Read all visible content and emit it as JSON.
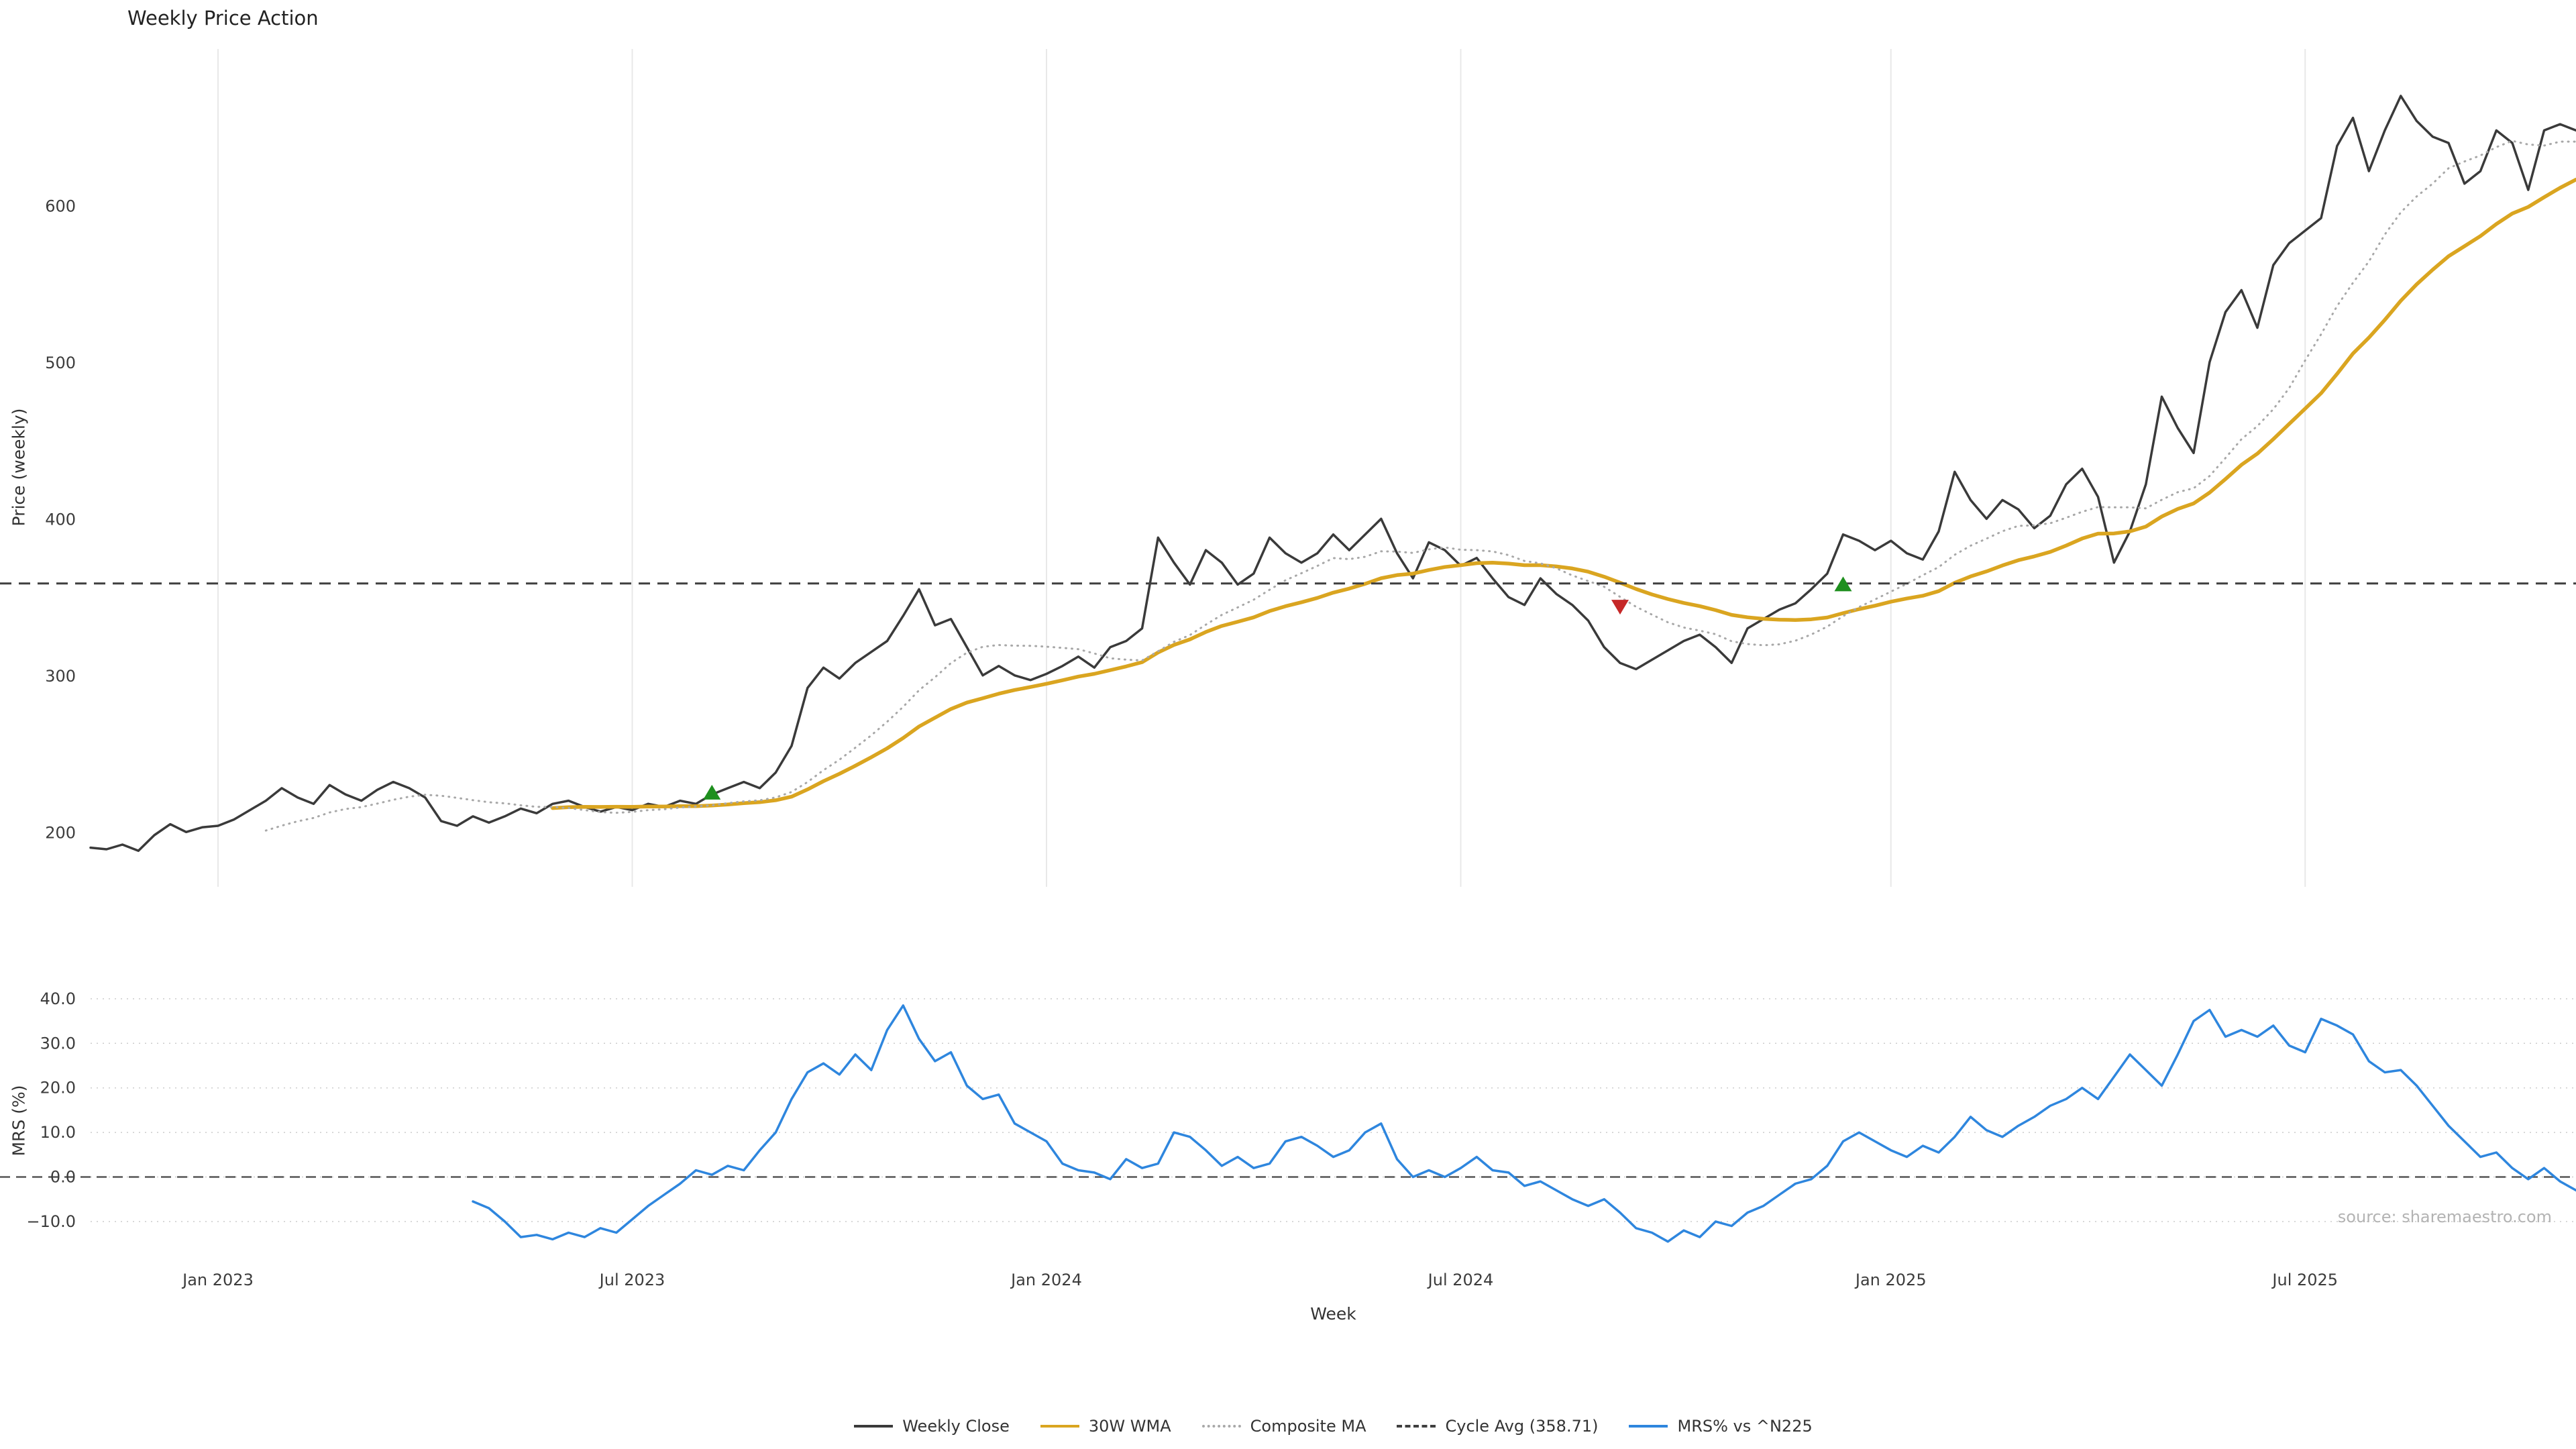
{
  "header": {
    "title": "Weekly Price Action"
  },
  "axes": {
    "x_label": "Week",
    "price_y_label": "Price (weekly)",
    "mrs_y_label": "MRS (%)"
  },
  "source_note": "source: sharemaestro.com",
  "legend": {
    "items": [
      {
        "label": "Weekly Close",
        "style": "solid",
        "color": "#3a3a3a"
      },
      {
        "label": "30W WMA",
        "style": "solid",
        "color": "#DAA520"
      },
      {
        "label": "Composite MA",
        "style": "dotted",
        "color": "#a8a8a8"
      },
      {
        "label": "Cycle Avg (358.71)",
        "style": "dashed",
        "color": "#3f3f3f"
      },
      {
        "label": "MRS% vs ^N225",
        "style": "solid",
        "color": "#2e86de"
      }
    ]
  },
  "chart_data": {
    "type": "line",
    "title": "Weekly Price Action",
    "xlabel": "Week",
    "grid": "vertical-light-top-panel, dotted-horizontal-bottom-panel",
    "legend_position": "bottom-center",
    "x_axis": {
      "start_week": 0,
      "end_week": 156,
      "tick_weeks": [
        8,
        34,
        60,
        86,
        113,
        139
      ],
      "tick_labels": [
        "Jan 2023",
        "Jul 2023",
        "Jan 2024",
        "Jul 2024",
        "Jan 2025",
        "Jul 2025"
      ]
    },
    "price_panel": {
      "ylabel": "Price (weekly)",
      "ylim": [
        165,
        700
      ],
      "yticks": [
        200,
        300,
        400,
        500,
        600
      ],
      "cycle_avg": 358.71,
      "series": [
        {
          "name": "Weekly Close",
          "type": "raw",
          "color": "#3a3a3a",
          "dash": "solid",
          "values": [
            190,
            189,
            192,
            188,
            198,
            205,
            200,
            203,
            204,
            208,
            214,
            220,
            228,
            222,
            218,
            230,
            224,
            220,
            227,
            232,
            228,
            222,
            207,
            204,
            210,
            206,
            210,
            215,
            212,
            218,
            220,
            216,
            213,
            216,
            214,
            218,
            216,
            220,
            218,
            224,
            228,
            232,
            228,
            238,
            255,
            292,
            305,
            298,
            308,
            315,
            322,
            338,
            355,
            332,
            336,
            318,
            300,
            306,
            300,
            297,
            301,
            306,
            312,
            305,
            318,
            322,
            330,
            388,
            372,
            358,
            380,
            372,
            358,
            365,
            388,
            378,
            372,
            378,
            390,
            380,
            390,
            400,
            378,
            362,
            385,
            380,
            370,
            375,
            362,
            350,
            345,
            362,
            352,
            345,
            335,
            318,
            308,
            304,
            310,
            316,
            322,
            326,
            318,
            308,
            330,
            336,
            342,
            346,
            355,
            365,
            390,
            386,
            380,
            386,
            378,
            374,
            392,
            430,
            412,
            400,
            412,
            406,
            394,
            402,
            422,
            432,
            414,
            372,
            392,
            422,
            478,
            458,
            442,
            500,
            532,
            546,
            522,
            562,
            576,
            584,
            592,
            638,
            656,
            622,
            648,
            670,
            654,
            644,
            640,
            614,
            622,
            648,
            640,
            610,
            648,
            652,
            648
          ]
        },
        {
          "name": "30W WMA",
          "type": "wma",
          "window": 30,
          "color": "#DAA520",
          "dash": "solid"
        },
        {
          "name": "Composite MA",
          "type": "sma",
          "window": 12,
          "color": "#a8a8a8",
          "dash": "dotted"
        },
        {
          "name": "Cycle Avg (358.71)",
          "type": "hline",
          "value": 358.71,
          "color": "#3f3f3f",
          "dash": "dashed"
        }
      ],
      "signals": [
        {
          "week": 39,
          "price": 225,
          "type": "buy"
        },
        {
          "week": 96,
          "price": 344,
          "type": "sell"
        },
        {
          "week": 110,
          "price": 358,
          "type": "buy"
        }
      ]
    },
    "mrs_panel": {
      "ylabel": "MRS (%)",
      "ylim": [
        -18,
        43
      ],
      "yticks": [
        -10,
        0,
        10,
        20,
        30,
        40
      ],
      "zero_line": 0,
      "series": {
        "name": "MRS% vs ^N225",
        "color": "#2e86de",
        "start_week": 24,
        "values": [
          -5.5,
          -7,
          -10,
          -13.5,
          -13,
          -14,
          -12.5,
          -13.5,
          -11.5,
          -12.5,
          -9.5,
          -6.5,
          -4,
          -1.5,
          1.5,
          0.5,
          2.5,
          1.5,
          6,
          10,
          17.5,
          23.5,
          25.5,
          23,
          27.5,
          24,
          33,
          38.5,
          31,
          26,
          28,
          20.5,
          17.5,
          18.5,
          12,
          10,
          8,
          3,
          1.5,
          1,
          -0.5,
          4,
          2,
          3,
          10,
          9,
          6,
          2.5,
          4.5,
          2,
          3,
          8,
          9,
          7,
          4.5,
          6,
          10,
          12,
          4,
          0,
          1.5,
          0,
          2,
          4.5,
          1.5,
          1,
          -2,
          -1,
          -3,
          -5,
          -6.5,
          -5,
          -8,
          -11.5,
          -12.5,
          -14.5,
          -12,
          -13.5,
          -10,
          -11,
          -8,
          -6.5,
          -4,
          -1.5,
          -0.5,
          2.5,
          8,
          10,
          8,
          6,
          4.5,
          7,
          5.5,
          9,
          13.5,
          10.5,
          9,
          11.5,
          13.5,
          16,
          17.5,
          20,
          17.5,
          22.5,
          27.5,
          24,
          20.5,
          27.5,
          35,
          37.5,
          31.5,
          33,
          31.5,
          34,
          29.5,
          28,
          35.5,
          34,
          32,
          26,
          23.5,
          24,
          20.5,
          16,
          11.5,
          8,
          4.5,
          5.5,
          2,
          -0.5,
          2,
          -1,
          -3
        ]
      }
    }
  }
}
